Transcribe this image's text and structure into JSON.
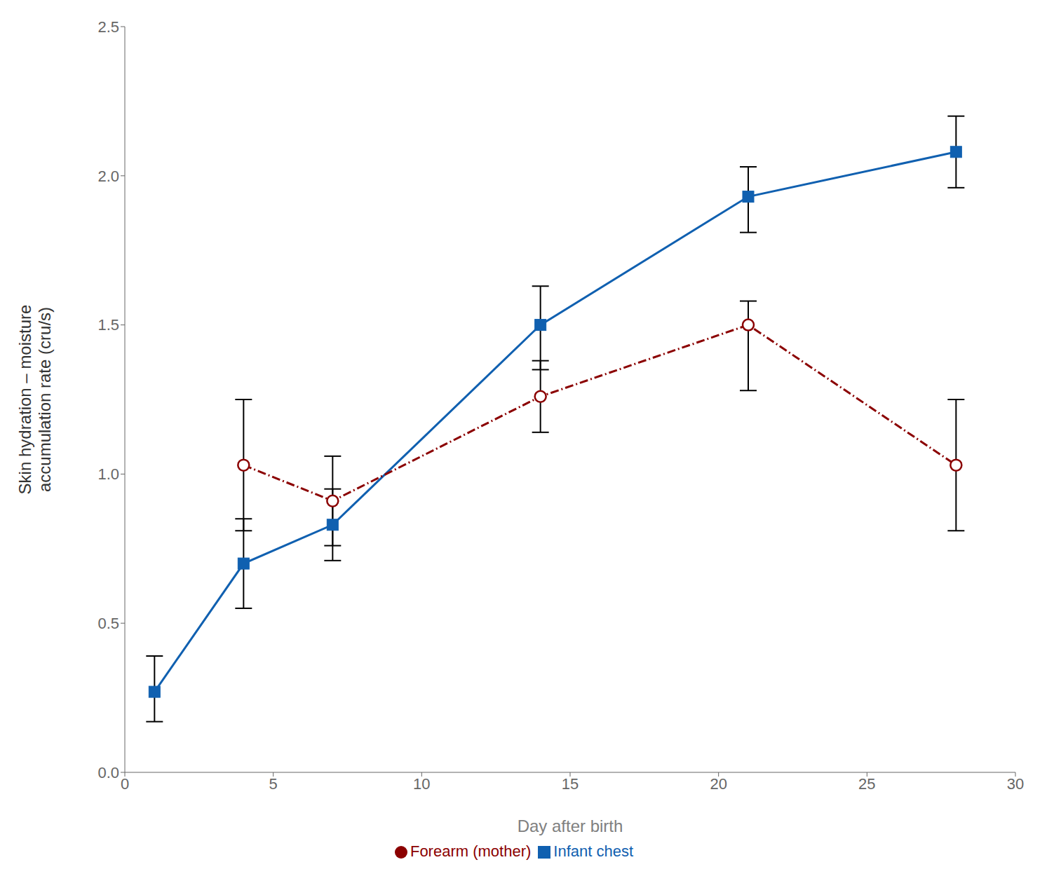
{
  "chart_data": {
    "type": "line",
    "xlabel": "Day after birth",
    "ylabel": "Skin hydration – moisture\naccumulation rate (cru/s)",
    "xlim": [
      0,
      30
    ],
    "ylim": [
      0.0,
      2.5
    ],
    "xticks": [
      0,
      5,
      10,
      15,
      20,
      25,
      30
    ],
    "yticks": [
      {
        "value": 0.0,
        "label": "0.0"
      },
      0.5,
      {
        "value": 1.0,
        "label": "1.0"
      },
      1.5,
      {
        "value": 2.0,
        "label": "2.0"
      },
      2.5
    ],
    "grid": false,
    "legend": "bottom",
    "series": [
      {
        "name": "Infant chest",
        "color": "#1060b0",
        "marker": "square",
        "line_style": "solid",
        "x": [
          1,
          4,
          7,
          14,
          21,
          28
        ],
        "values": [
          0.27,
          0.7,
          0.83,
          1.5,
          1.93,
          2.08
        ],
        "error_low": [
          0.1,
          0.15,
          0.12,
          0.15,
          0.12,
          0.12
        ],
        "error_high": [
          0.12,
          0.15,
          0.12,
          0.13,
          0.1,
          0.12
        ]
      },
      {
        "name": "Forearm (mother)",
        "color": "#8b0000",
        "marker": "open_circle",
        "line_style": "dashdot",
        "x": [
          4,
          7,
          14,
          21,
          28
        ],
        "values": [
          1.03,
          0.91,
          1.26,
          1.5,
          1.03
        ],
        "error_low": [
          0.22,
          0.15,
          0.12,
          0.22,
          0.22
        ],
        "error_high": [
          0.22,
          0.15,
          0.12,
          0.08,
          0.22
        ]
      }
    ]
  }
}
